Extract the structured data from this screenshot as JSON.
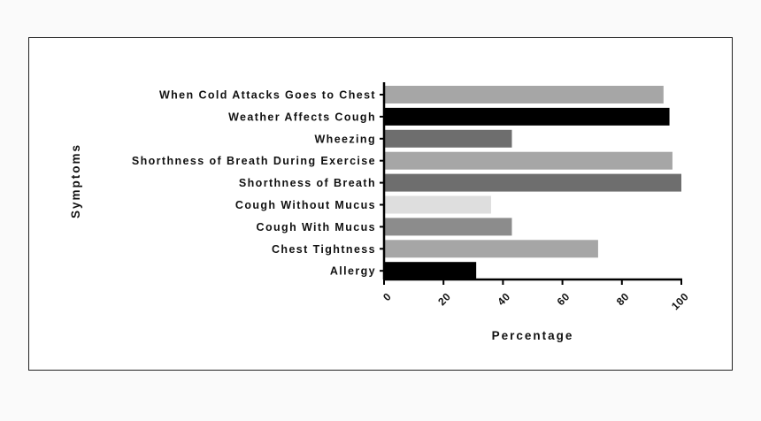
{
  "chart_data": {
    "type": "bar",
    "orientation": "horizontal",
    "xlabel": "Percentage",
    "ylabel": "Symptoms",
    "xlim": [
      0,
      100
    ],
    "xticks": [
      "0",
      "20",
      "40",
      "60",
      "80",
      "100"
    ],
    "xtick_values": [
      0,
      20,
      40,
      60,
      80,
      100
    ],
    "categories": [
      "When Cold Attacks Goes to Chest",
      "Weather Affects Cough",
      "Wheezing",
      "Shorthness of Breath During Exercise",
      "Shorthness of Breath",
      "Cough Without Mucus",
      "Cough With Mucus",
      "Chest Tightness",
      "Allergy"
    ],
    "values": [
      94,
      96,
      43,
      97,
      100,
      36,
      43,
      72,
      31
    ],
    "colors": [
      "#a6a6a6",
      "#000000",
      "#6e6e6e",
      "#a6a6a6",
      "#6e6e6e",
      "#dedede",
      "#8c8c8c",
      "#a6a6a6",
      "#000000"
    ],
    "grid": false,
    "legend": "none"
  }
}
